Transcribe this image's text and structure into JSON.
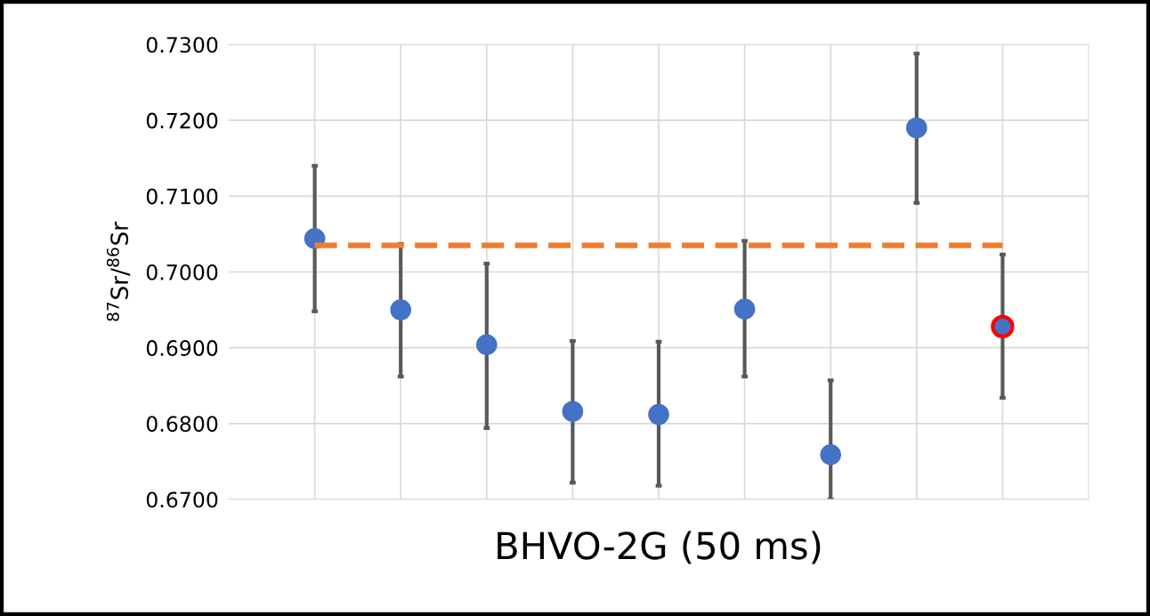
{
  "chart_data": {
    "type": "scatter",
    "xlabel": "BHVO-2G (50 ms)",
    "ylabel": "$^{87}$Sr/$^{86}$Sr",
    "categories": [
      null,
      null,
      null,
      null,
      null,
      null,
      null,
      null,
      null
    ],
    "ylim": [
      0.67,
      0.73
    ],
    "yticks": [
      {
        "value": 0.67,
        "label": "0.6700"
      },
      {
        "value": 0.68,
        "label": "0.6800"
      },
      {
        "value": 0.69,
        "label": "0.6900"
      },
      {
        "value": 0.7,
        "label": "0.7000"
      },
      {
        "value": 0.71,
        "label": "0.7100"
      },
      {
        "value": 0.72,
        "label": "0.7200"
      },
      {
        "value": 0.73,
        "label": "0.7300"
      }
    ],
    "grid": true,
    "marker": "circle",
    "series": [
      {
        "color": "#4472c4",
        "values": [
          0.7044,
          0.695,
          0.6904,
          0.6816,
          0.6812,
          0.6951,
          0.6759,
          0.719,
          null
        ],
        "errors": [
          [
            0.6948,
            0.714
          ],
          [
            0.6862,
            0.7037
          ],
          [
            0.6794,
            0.7011
          ],
          [
            0.6722,
            0.6909
          ],
          [
            0.6718,
            0.6908
          ],
          [
            0.6862,
            0.7041
          ],
          [
            0.67,
            0.6857
          ],
          [
            0.7091,
            0.7288
          ],
          null
        ]
      },
      {
        "color": "#ff0000",
        "values": [
          null,
          null,
          null,
          null,
          null,
          null,
          null,
          null,
          0.6928
        ],
        "errors": [
          null,
          null,
          null,
          null,
          null,
          null,
          null,
          null,
          [
            0.6834,
            0.7023
          ]
        ]
      },
      {
        "type": "line",
        "marker": "none",
        "color": "#ed7d31",
        "line_style": "dashed",
        "values": [
          0.7035,
          0.7035,
          0.7035,
          0.7035,
          0.7035,
          0.7035,
          0.7035,
          0.7035,
          0.7035
        ]
      }
    ]
  }
}
